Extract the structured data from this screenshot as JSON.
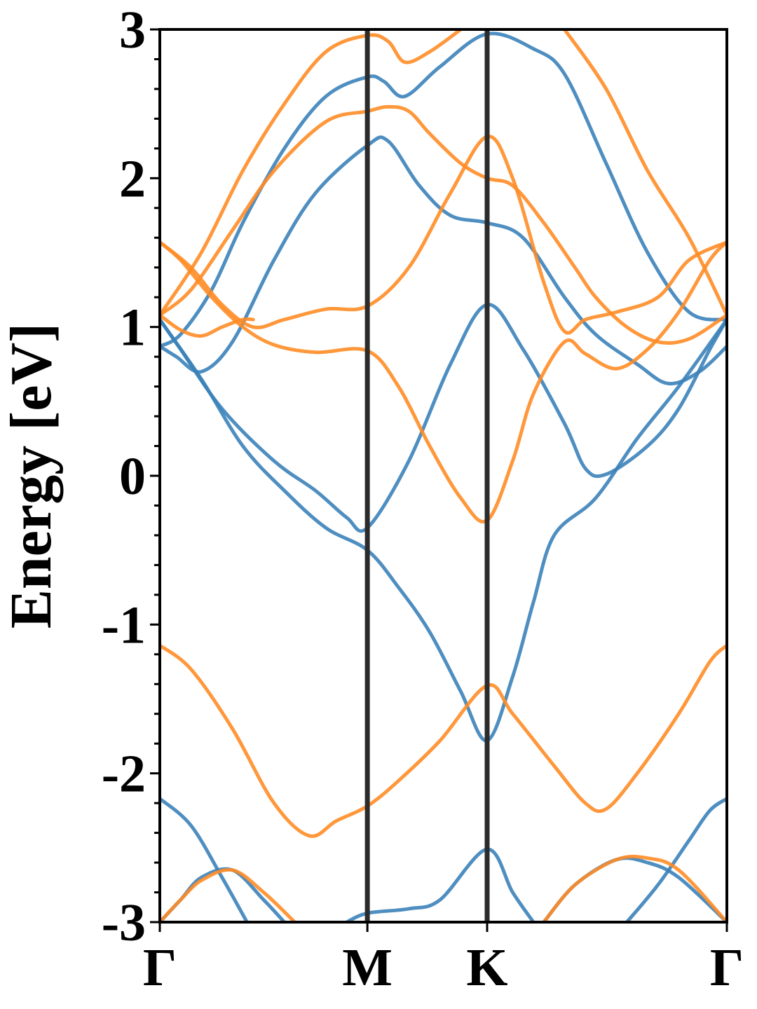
{
  "chart_data": {
    "type": "line",
    "title": "",
    "xlabel": "",
    "ylabel": "Energy [eV]",
    "ylim": [
      -3,
      3
    ],
    "xlim": [
      0,
      2.732
    ],
    "y_ticks": [
      -3,
      -2,
      -1,
      0,
      1,
      2,
      3
    ],
    "high_symmetry_points": [
      {
        "label": "Γ",
        "x": 0
      },
      {
        "label": "M",
        "x": 1.0
      },
      {
        "label": "K",
        "x": 1.577
      },
      {
        "label": "Γ",
        "x": 2.732
      }
    ],
    "grid": false,
    "legend": "none",
    "colors": {
      "spin_up": "#3b82b9",
      "spin_down": "#ff8c26",
      "separator": "#2b2b2b"
    },
    "series": [
      {
        "color": "#3b82b9",
        "points": [
          [
            0,
            0.87
          ],
          [
            0.08,
            0.8
          ],
          [
            0.2,
            0.7
          ],
          [
            0.35,
            0.9
          ],
          [
            0.55,
            1.45
          ],
          [
            0.75,
            1.9
          ],
          [
            1.0,
            2.22
          ],
          [
            1.1,
            2.25
          ],
          [
            1.25,
            1.95
          ],
          [
            1.4,
            1.75
          ],
          [
            1.577,
            1.7
          ],
          [
            1.75,
            1.6
          ],
          [
            1.95,
            1.2
          ],
          [
            2.1,
            0.95
          ],
          [
            2.3,
            0.75
          ],
          [
            2.45,
            0.62
          ],
          [
            2.6,
            0.7
          ],
          [
            2.732,
            0.87
          ]
        ]
      },
      {
        "color": "#3b82b9",
        "points": [
          [
            0,
            0.87
          ],
          [
            0.1,
            0.95
          ],
          [
            0.25,
            1.25
          ],
          [
            0.4,
            1.7
          ],
          [
            0.6,
            2.2
          ],
          [
            0.8,
            2.55
          ],
          [
            1.0,
            2.68
          ],
          [
            1.08,
            2.65
          ],
          [
            1.18,
            2.55
          ],
          [
            1.35,
            2.75
          ],
          [
            1.577,
            2.97
          ],
          [
            1.8,
            2.87
          ],
          [
            1.95,
            2.7
          ],
          [
            2.15,
            2.1
          ],
          [
            2.35,
            1.5
          ],
          [
            2.55,
            1.1
          ],
          [
            2.732,
            1.05
          ]
        ]
      },
      {
        "color": "#3b82b9",
        "points": [
          [
            0,
            1.05
          ],
          [
            0.1,
            0.85
          ],
          [
            0.3,
            0.45
          ],
          [
            0.55,
            0.1
          ],
          [
            0.75,
            -0.1
          ],
          [
            0.9,
            -0.28
          ],
          [
            1.0,
            -0.35
          ],
          [
            1.2,
            0.1
          ],
          [
            1.4,
            0.75
          ],
          [
            1.577,
            1.15
          ],
          [
            1.75,
            0.85
          ],
          [
            1.95,
            0.35
          ],
          [
            2.05,
            0.05
          ],
          [
            2.15,
            0.01
          ],
          [
            2.35,
            0.2
          ],
          [
            2.5,
            0.45
          ],
          [
            2.65,
            0.85
          ],
          [
            2.732,
            1.05
          ]
        ]
      },
      {
        "color": "#3b82b9",
        "points": [
          [
            0,
            1.05
          ],
          [
            0.2,
            0.65
          ],
          [
            0.4,
            0.2
          ],
          [
            0.6,
            -0.1
          ],
          [
            0.8,
            -0.35
          ],
          [
            1.0,
            -0.5
          ],
          [
            1.15,
            -0.75
          ],
          [
            1.3,
            -1.05
          ],
          [
            1.45,
            -1.45
          ],
          [
            1.577,
            -1.78
          ],
          [
            1.7,
            -1.35
          ],
          [
            1.8,
            -0.85
          ],
          [
            1.9,
            -0.4
          ],
          [
            2.1,
            -0.15
          ],
          [
            2.3,
            0.25
          ],
          [
            2.5,
            0.6
          ],
          [
            2.732,
            1.05
          ]
        ]
      },
      {
        "color": "#3b82b9",
        "points": [
          [
            0,
            -2.17
          ],
          [
            0.15,
            -2.35
          ],
          [
            0.3,
            -2.7
          ],
          [
            0.42,
            -3.0
          ]
        ]
      },
      {
        "color": "#3b82b9",
        "points": [
          [
            0.9,
            -3.0
          ],
          [
            1.0,
            -2.94
          ],
          [
            1.2,
            -2.91
          ],
          [
            1.35,
            -2.85
          ],
          [
            1.577,
            -2.51
          ],
          [
            1.7,
            -2.8
          ],
          [
            1.8,
            -3.0
          ]
        ]
      },
      {
        "color": "#3b82b9",
        "points": [
          [
            1.85,
            -3.0
          ],
          [
            2.0,
            -2.75
          ],
          [
            2.2,
            -2.58
          ],
          [
            2.35,
            -2.6
          ],
          [
            2.5,
            -2.7
          ],
          [
            2.732,
            -3.0
          ]
        ]
      },
      {
        "color": "#3b82b9",
        "points": [
          [
            2.25,
            -3.0
          ],
          [
            2.4,
            -2.75
          ],
          [
            2.55,
            -2.45
          ],
          [
            2.65,
            -2.25
          ],
          [
            2.732,
            -2.17
          ]
        ]
      },
      {
        "color": "#3b82b9",
        "points": [
          [
            0,
            -3.0
          ],
          [
            0.1,
            -2.85
          ],
          [
            0.2,
            -2.7
          ],
          [
            0.35,
            -2.65
          ],
          [
            0.5,
            -2.85
          ],
          [
            0.6,
            -3.0
          ]
        ]
      },
      {
        "color": "#ff8c26",
        "points": [
          [
            0,
            1.08
          ],
          [
            0.2,
            1.5
          ],
          [
            0.4,
            2.05
          ],
          [
            0.6,
            2.5
          ],
          [
            0.8,
            2.85
          ],
          [
            1.0,
            2.96
          ],
          [
            1.1,
            2.92
          ],
          [
            1.18,
            2.78
          ],
          [
            1.3,
            2.85
          ],
          [
            1.45,
            3.0
          ]
        ]
      },
      {
        "color": "#ff8c26",
        "points": [
          [
            1.95,
            3.0
          ],
          [
            2.15,
            2.6
          ],
          [
            2.35,
            2.05
          ],
          [
            2.55,
            1.6
          ],
          [
            2.732,
            1.08
          ]
        ]
      },
      {
        "color": "#ff8c26",
        "points": [
          [
            0,
            1.08
          ],
          [
            0.15,
            1.25
          ],
          [
            0.35,
            1.65
          ],
          [
            0.55,
            2.05
          ],
          [
            0.8,
            2.38
          ],
          [
            1.0,
            2.45
          ],
          [
            1.1,
            2.48
          ],
          [
            1.2,
            2.45
          ],
          [
            1.3,
            2.3
          ],
          [
            1.45,
            2.1
          ],
          [
            1.577,
            2.0
          ],
          [
            1.7,
            1.95
          ],
          [
            1.85,
            1.7
          ],
          [
            2.0,
            1.4
          ],
          [
            2.1,
            1.2
          ],
          [
            2.25,
            1.0
          ],
          [
            2.4,
            0.9
          ],
          [
            2.55,
            0.92
          ],
          [
            2.732,
            1.08
          ]
        ]
      },
      {
        "color": "#ff8c26",
        "points": [
          [
            0,
            1.57
          ],
          [
            0.15,
            1.4
          ],
          [
            0.3,
            1.15
          ],
          [
            0.45,
            1.0
          ],
          [
            0.6,
            1.05
          ],
          [
            0.8,
            1.12
          ],
          [
            1.0,
            1.14
          ],
          [
            1.2,
            1.4
          ],
          [
            1.4,
            1.9
          ],
          [
            1.577,
            2.28
          ],
          [
            1.7,
            2.0
          ],
          [
            1.85,
            1.3
          ],
          [
            1.95,
            0.97
          ],
          [
            2.05,
            1.05
          ],
          [
            2.2,
            1.1
          ],
          [
            2.4,
            1.2
          ],
          [
            2.55,
            1.45
          ],
          [
            2.732,
            1.57
          ]
        ]
      },
      {
        "color": "#ff8c26",
        "points": [
          [
            0,
            1.57
          ],
          [
            0.1,
            1.45
          ],
          [
            0.25,
            1.2
          ],
          [
            0.4,
            1.0
          ],
          [
            0.55,
            0.88
          ],
          [
            0.75,
            0.83
          ],
          [
            1.0,
            0.84
          ],
          [
            1.15,
            0.6
          ],
          [
            1.3,
            0.2
          ],
          [
            1.45,
            -0.15
          ],
          [
            1.577,
            -0.3
          ],
          [
            1.7,
            0.1
          ],
          [
            1.8,
            0.55
          ],
          [
            1.95,
            0.9
          ],
          [
            2.05,
            0.82
          ],
          [
            2.2,
            0.72
          ],
          [
            2.35,
            0.85
          ],
          [
            2.5,
            1.1
          ],
          [
            2.65,
            1.45
          ],
          [
            2.732,
            1.57
          ]
        ]
      },
      {
        "color": "#ff8c26",
        "points": [
          [
            0,
            1.08
          ],
          [
            0.1,
            0.98
          ],
          [
            0.2,
            0.94
          ],
          [
            0.3,
            1.0
          ],
          [
            0.4,
            1.05
          ],
          [
            0.45,
            1.05
          ]
        ]
      },
      {
        "color": "#ff8c26",
        "points": [
          [
            0,
            -1.14
          ],
          [
            0.15,
            -1.3
          ],
          [
            0.35,
            -1.7
          ],
          [
            0.55,
            -2.2
          ],
          [
            0.72,
            -2.42
          ],
          [
            0.85,
            -2.32
          ],
          [
            1.0,
            -2.22
          ],
          [
            1.15,
            -2.05
          ],
          [
            1.35,
            -1.78
          ],
          [
            1.577,
            -1.41
          ],
          [
            1.7,
            -1.6
          ],
          [
            1.9,
            -1.95
          ],
          [
            2.05,
            -2.2
          ],
          [
            2.15,
            -2.24
          ],
          [
            2.3,
            -2.0
          ],
          [
            2.5,
            -1.6
          ],
          [
            2.65,
            -1.25
          ],
          [
            2.732,
            -1.14
          ]
        ]
      },
      {
        "color": "#ff8c26",
        "points": [
          [
            0,
            -3.0
          ],
          [
            0.1,
            -2.85
          ],
          [
            0.2,
            -2.72
          ],
          [
            0.35,
            -2.65
          ],
          [
            0.5,
            -2.8
          ],
          [
            0.65,
            -3.0
          ]
        ]
      },
      {
        "color": "#ff8c26",
        "points": [
          [
            1.85,
            -3.0
          ],
          [
            2.0,
            -2.75
          ],
          [
            2.2,
            -2.58
          ],
          [
            2.35,
            -2.57
          ],
          [
            2.5,
            -2.65
          ],
          [
            2.732,
            -3.0
          ]
        ]
      }
    ]
  }
}
